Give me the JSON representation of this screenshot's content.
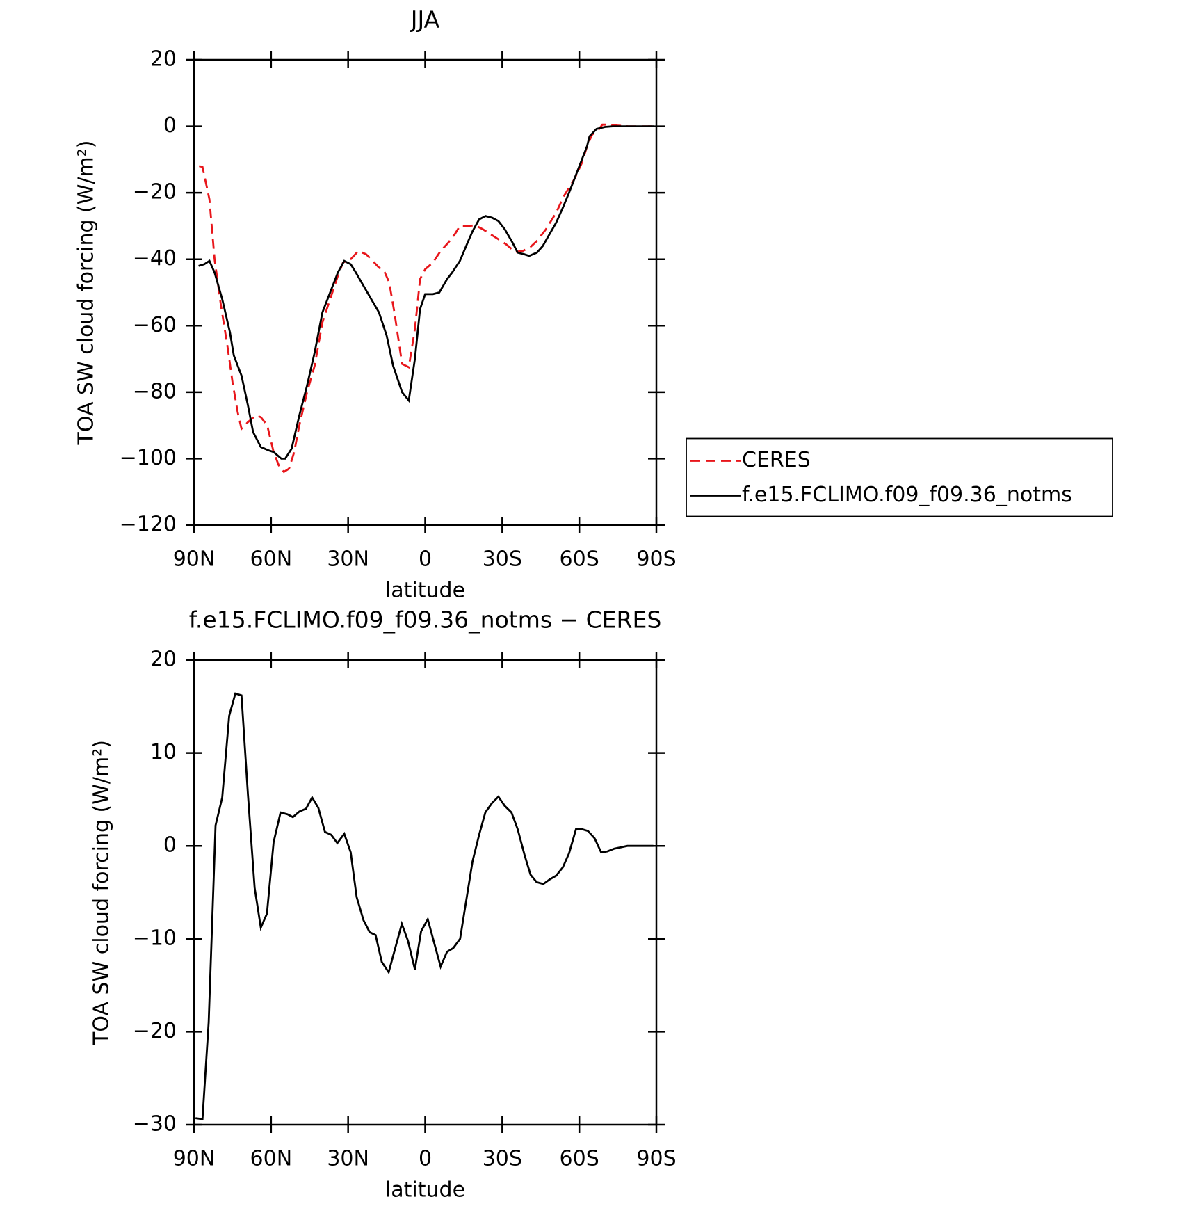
{
  "chart_data": [
    {
      "type": "line",
      "title": "JJA",
      "xlabel": "latitude",
      "ylabel": "TOA SW cloud forcing (W/m²)",
      "xlim": [
        90,
        -90
      ],
      "xticks": [
        {
          "value": 90,
          "label": "90N"
        },
        {
          "value": 60,
          "label": "60N"
        },
        {
          "value": 30,
          "label": "30N"
        },
        0,
        {
          "value": -30,
          "label": "30S"
        },
        {
          "value": -60,
          "label": "60S"
        },
        {
          "value": -90,
          "label": "90S"
        }
      ],
      "ylim": [
        -120,
        20
      ],
      "yticks": [
        20,
        0,
        {
          "value": -20,
          "label": "−20"
        },
        {
          "value": -40,
          "label": "−40"
        },
        {
          "value": -60,
          "label": "−60"
        },
        {
          "value": -80,
          "label": "−80"
        },
        {
          "value": -100,
          "label": "−100"
        },
        {
          "value": -120,
          "label": "−120"
        }
      ],
      "legend": "right",
      "series": [
        {
          "name": "CERES",
          "color": "#e8161b",
          "style": "dashed",
          "x": [
            88,
            86.7,
            84,
            82,
            79.5,
            77,
            75,
            73,
            71.5,
            69,
            66,
            64,
            61.5,
            59,
            57,
            55,
            53,
            51,
            49,
            46,
            43,
            40,
            37,
            34,
            32,
            29,
            26,
            23,
            21,
            18,
            16,
            14,
            12,
            9,
            6.4,
            4,
            2,
            0,
            -3,
            -6,
            -9,
            -11.5,
            -13.5,
            -16.5,
            -19.5,
            -22.5,
            -25.5,
            -28.5,
            -31.5,
            -35,
            -38,
            -41,
            -43.5,
            -47,
            -51,
            -54,
            -58,
            -61,
            -63,
            -65,
            -67.5,
            -69,
            -72,
            -75,
            -79,
            -89
          ],
          "values": [
            -12,
            -12.2,
            -22,
            -40,
            -54,
            -66,
            -77,
            -86,
            -91,
            -89,
            -87,
            -87.5,
            -90,
            -98,
            -102,
            -104,
            -103,
            -98,
            -90,
            -80,
            -72,
            -59,
            -52,
            -45,
            -41,
            -40,
            -37.5,
            -38.5,
            -40,
            -42.5,
            -43.5,
            -47,
            -56,
            -71.5,
            -72.5,
            -61,
            -46,
            -43,
            -41,
            -37.5,
            -35,
            -32.5,
            -30,
            -30,
            -29.8,
            -31,
            -32.5,
            -34,
            -35.5,
            -37.8,
            -37.5,
            -36.3,
            -34.5,
            -31,
            -26,
            -21,
            -16,
            -11,
            -6,
            -2.5,
            -1,
            0.5,
            0.5,
            0.2,
            0,
            0
          ]
        },
        {
          "name": "f.e15.FCLIMO.f09_f09.36_notms",
          "color": "#000000",
          "style": "solid",
          "x": [
            88.2,
            86,
            84,
            82,
            79,
            76,
            74.5,
            71.5,
            69,
            67,
            64,
            61,
            59,
            56,
            54.5,
            52,
            49,
            46,
            43,
            40,
            37,
            34,
            31.5,
            29,
            27,
            24,
            21,
            18,
            15,
            12.5,
            9,
            6.4,
            4,
            2,
            0,
            -3,
            -5.5,
            -8.5,
            -10.5,
            -13.5,
            -16.5,
            -18.5,
            -21,
            -23.5,
            -26,
            -28.5,
            -31,
            -34,
            -36,
            -38.5,
            -40.5,
            -43.5,
            -45.8,
            -48,
            -51,
            -53.6,
            -56,
            -58,
            -61,
            -63,
            -64,
            -66.7,
            -70,
            -73,
            -79,
            -84.6,
            -89
          ],
          "values": [
            -42,
            -41.5,
            -40.5,
            -44,
            -52,
            -62,
            -69,
            -75,
            -84,
            -92,
            -96.5,
            -97.5,
            -98,
            -100,
            -100,
            -97,
            -87,
            -78,
            -68,
            -56,
            -50,
            -44,
            -40.5,
            -41.5,
            -44,
            -48,
            -52,
            -56,
            -63,
            -72,
            -80,
            -82.5,
            -70,
            -55,
            -50.5,
            -50.5,
            -50,
            -46,
            -44,
            -40.5,
            -35,
            -31.5,
            -28,
            -27,
            -27.5,
            -28.5,
            -31,
            -35,
            -38,
            -38.5,
            -39,
            -38,
            -36,
            -33,
            -29,
            -24.5,
            -20,
            -16,
            -10,
            -6,
            -3,
            -0.8,
            -0.2,
            0,
            0,
            0,
            0
          ]
        }
      ]
    },
    {
      "type": "line",
      "title": "f.e15.FCLIMO.f09_f09.36_notms − CERES",
      "xlabel": "latitude",
      "ylabel": "TOA SW cloud forcing (W/m²)",
      "xlim": [
        90,
        -90
      ],
      "xticks": [
        {
          "value": 90,
          "label": "90N"
        },
        {
          "value": 60,
          "label": "60N"
        },
        {
          "value": 30,
          "label": "30N"
        },
        0,
        {
          "value": -30,
          "label": "30S"
        },
        {
          "value": -60,
          "label": "60S"
        },
        {
          "value": -90,
          "label": "90S"
        }
      ],
      "ylim": [
        -30,
        20
      ],
      "yticks": [
        20,
        10,
        0,
        {
          "value": -10,
          "label": "−10"
        },
        {
          "value": -20,
          "label": "−20"
        },
        {
          "value": -30,
          "label": "−30"
        }
      ],
      "series": [
        {
          "color": "#000000",
          "style": "solid",
          "x": [
            89.4,
            86.7,
            84.3,
            81.6,
            79,
            76.3,
            73.9,
            71.5,
            69,
            66.4,
            64,
            61.6,
            59,
            56.3,
            53.6,
            51.5,
            49,
            46.4,
            44,
            41.6,
            39,
            36.6,
            34.2,
            31.5,
            29,
            26.7,
            24,
            21.6,
            19.3,
            16.9,
            14.2,
            9.1,
            6.7,
            4,
            1.6,
            -1,
            -6,
            -8.5,
            -10.9,
            -13.6,
            -18.4,
            -21,
            -23.4,
            -26,
            -28.5,
            -31,
            -33.6,
            -36,
            -38.7,
            -41,
            -43.4,
            -46,
            -48.5,
            -51,
            -53.6,
            -56,
            -58.7,
            -61,
            -63.4,
            -66,
            -68.5,
            -70.9,
            -73.6,
            -78.7,
            -88.8
          ],
          "values": [
            -29.3,
            -29.4,
            -19,
            2.2,
            5.2,
            14,
            16.4,
            16.2,
            5.5,
            -4.5,
            -8.8,
            -7.3,
            0.4,
            3.6,
            3.4,
            3.1,
            3.7,
            4.0,
            5.2,
            4.1,
            1.5,
            1.2,
            0.3,
            1.3,
            -0.7,
            -5.5,
            -8,
            -9.3,
            -9.6,
            -12.5,
            -13.6,
            -8.4,
            -10.2,
            -13.3,
            -9.2,
            -7.9,
            -13,
            -11.4,
            -11,
            -10,
            -1.7,
            1.2,
            3.6,
            4.6,
            5.3,
            4.3,
            3.6,
            1.8,
            -1,
            -3.1,
            -3.9,
            -4.1,
            -3.6,
            -3.2,
            -2.3,
            -0.8,
            1.8,
            1.8,
            1.6,
            0.8,
            -0.7,
            -0.6,
            -0.3,
            0,
            0
          ]
        }
      ]
    }
  ]
}
